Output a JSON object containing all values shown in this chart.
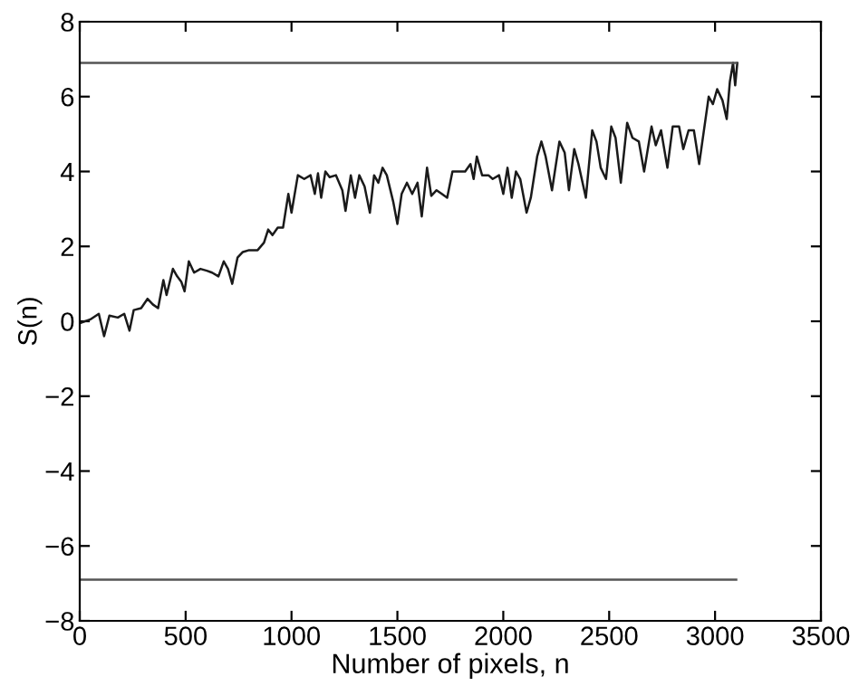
{
  "chart_data": {
    "type": "line",
    "xlabel": "Number of pixels, n",
    "ylabel": "S(n)",
    "xlim": [
      0,
      3500
    ],
    "ylim": [
      -8,
      8
    ],
    "xticks": [
      0,
      500,
      1000,
      1500,
      2000,
      2500,
      3000,
      3500
    ],
    "yticks": [
      -8,
      -6,
      -4,
      -2,
      0,
      2,
      4,
      6,
      8
    ],
    "grid": false,
    "legend": false,
    "series": [
      {
        "color": "#1a1a1a",
        "x": [
          0,
          50,
          90,
          115,
          140,
          180,
          210,
          235,
          255,
          290,
          320,
          345,
          370,
          395,
          410,
          440,
          460,
          480,
          495,
          515,
          540,
          570,
          600,
          625,
          655,
          680,
          700,
          720,
          745,
          770,
          800,
          840,
          870,
          890,
          910,
          935,
          960,
          985,
          1000,
          1030,
          1060,
          1090,
          1110,
          1125,
          1140,
          1160,
          1180,
          1210,
          1240,
          1255,
          1280,
          1300,
          1320,
          1345,
          1370,
          1390,
          1410,
          1430,
          1450,
          1480,
          1500,
          1520,
          1545,
          1570,
          1595,
          1615,
          1640,
          1660,
          1685,
          1710,
          1735,
          1760,
          1790,
          1820,
          1845,
          1860,
          1875,
          1900,
          1930,
          1950,
          1980,
          2000,
          2020,
          2040,
          2060,
          2080,
          2110,
          2130,
          2160,
          2180,
          2200,
          2230,
          2265,
          2290,
          2310,
          2335,
          2355,
          2390,
          2420,
          2440,
          2460,
          2485,
          2510,
          2530,
          2555,
          2585,
          2610,
          2640,
          2665,
          2700,
          2720,
          2745,
          2775,
          2800,
          2830,
          2850,
          2875,
          2900,
          2925,
          2945,
          2970,
          2990,
          3010,
          3035,
          3055,
          3070,
          3085,
          3095,
          3105
        ],
        "values": [
          -0.05,
          0.05,
          0.2,
          -0.4,
          0.15,
          0.1,
          0.2,
          -0.25,
          0.3,
          0.35,
          0.6,
          0.45,
          0.35,
          1.1,
          0.7,
          1.4,
          1.2,
          1.05,
          0.8,
          1.6,
          1.3,
          1.4,
          1.35,
          1.3,
          1.2,
          1.6,
          1.4,
          1.0,
          1.7,
          1.85,
          1.9,
          1.9,
          2.1,
          2.45,
          2.3,
          2.5,
          2.5,
          3.4,
          2.9,
          3.9,
          3.8,
          3.9,
          3.4,
          3.95,
          3.3,
          4.0,
          3.85,
          3.9,
          3.5,
          2.95,
          3.9,
          3.3,
          3.9,
          3.6,
          2.9,
          3.9,
          3.7,
          4.1,
          3.9,
          3.2,
          2.6,
          3.4,
          3.7,
          3.4,
          3.7,
          2.8,
          4.1,
          3.35,
          3.5,
          3.4,
          3.3,
          4.0,
          4.0,
          4.0,
          4.2,
          3.8,
          4.4,
          3.9,
          3.9,
          3.8,
          3.9,
          3.4,
          4.1,
          3.3,
          4.0,
          3.8,
          2.9,
          3.3,
          4.4,
          4.8,
          4.4,
          3.5,
          4.8,
          4.5,
          3.5,
          4.6,
          4.2,
          3.3,
          5.1,
          4.8,
          4.1,
          3.8,
          5.2,
          4.9,
          3.7,
          5.3,
          4.9,
          4.8,
          4.0,
          5.2,
          4.7,
          5.1,
          4.1,
          5.2,
          5.2,
          4.6,
          5.1,
          5.1,
          4.2,
          5.0,
          6.0,
          5.8,
          6.2,
          5.9,
          5.4,
          6.4,
          6.9,
          6.3,
          6.9
        ]
      },
      {
        "color": "#555555",
        "x": [
          0,
          3100
        ],
        "values": [
          6.9,
          6.9
        ]
      },
      {
        "color": "#555555",
        "x": [
          0,
          3100
        ],
        "values": [
          -6.9,
          -6.9
        ]
      }
    ]
  }
}
